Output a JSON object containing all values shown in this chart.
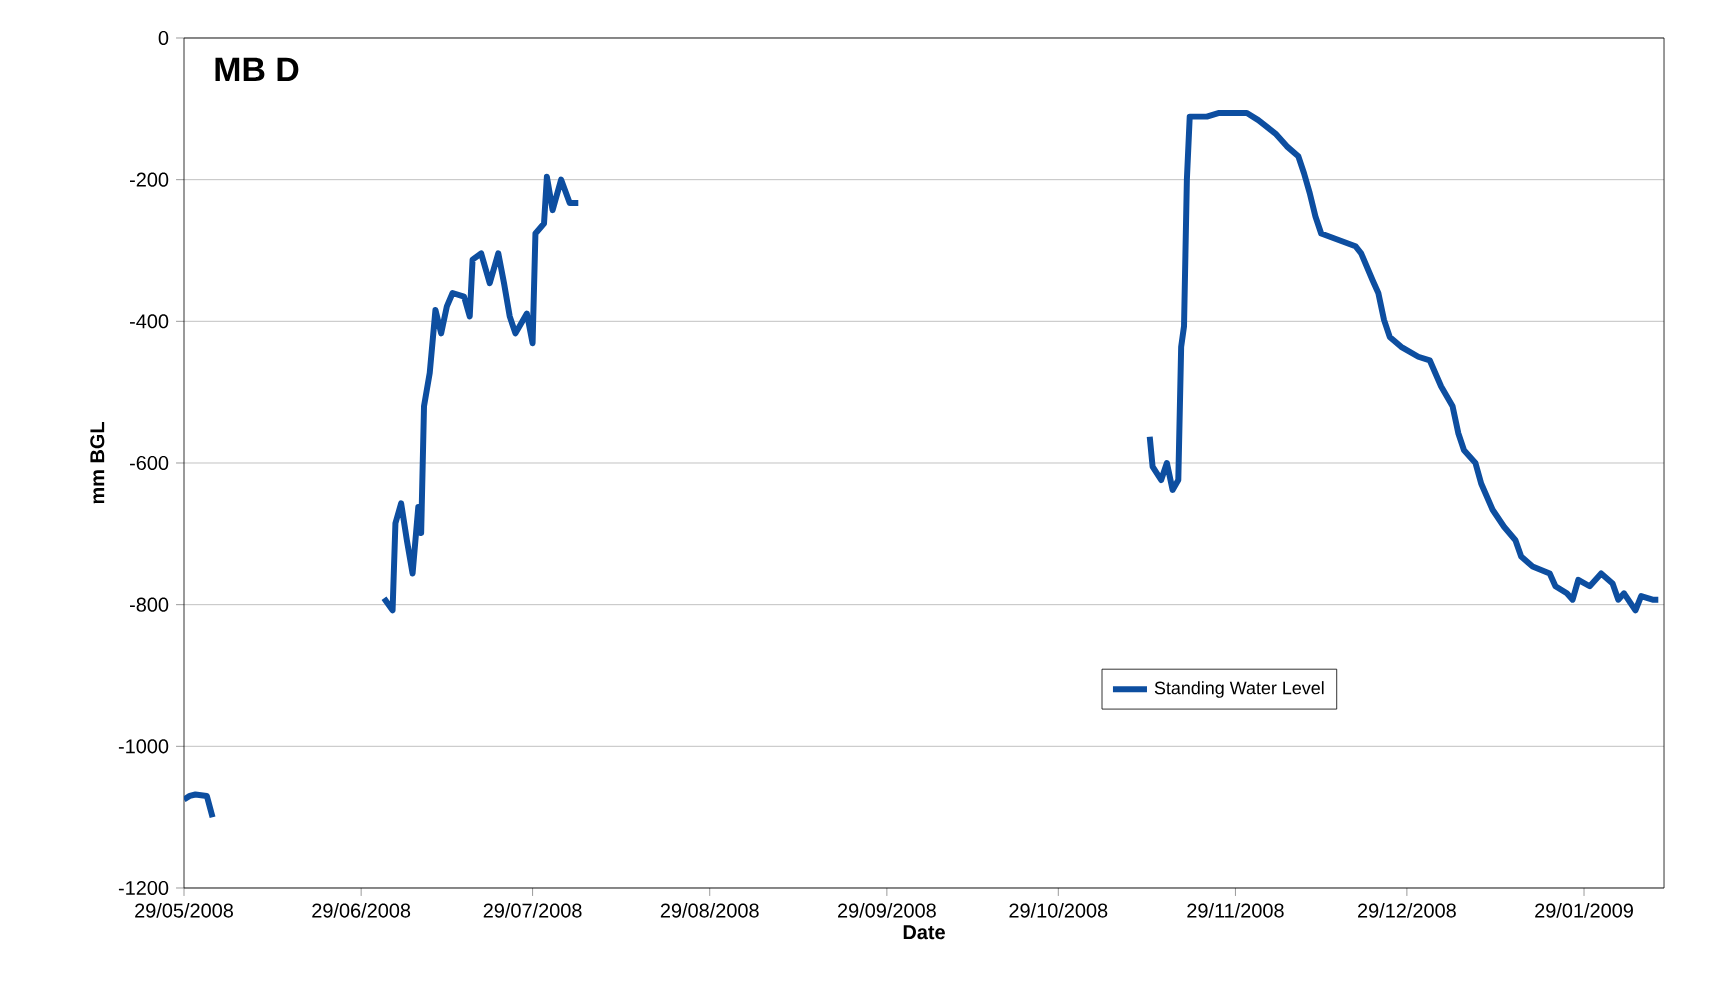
{
  "chart_data": {
    "type": "line",
    "title": "MB D",
    "xlabel": "Date",
    "ylabel": "mm BGL",
    "xlim": [
      "2008-05-29",
      "2009-02-12"
    ],
    "xticks": [
      {
        "value": "2008-05-29",
        "label": "29/05/2008"
      },
      {
        "value": "2008-06-29",
        "label": "29/06/2008"
      },
      {
        "value": "2008-07-29",
        "label": "29/07/2008"
      },
      {
        "value": "2008-08-29",
        "label": "29/08/2008"
      },
      {
        "value": "2008-09-29",
        "label": "29/09/2008"
      },
      {
        "value": "2008-10-29",
        "label": "29/10/2008"
      },
      {
        "value": "2008-11-29",
        "label": "29/11/2008"
      },
      {
        "value": "2008-12-29",
        "label": "29/12/2008"
      },
      {
        "value": "2009-01-29",
        "label": "29/01/2009"
      }
    ],
    "ylim": [
      -1200,
      0
    ],
    "yticks": [
      -1200,
      -1000,
      -800,
      -600,
      -400,
      -200,
      0
    ],
    "grid": "y",
    "legend": "bottom right",
    "marker": "none",
    "line_style": "solid",
    "x": [
      "2008-05-29",
      "2008-05-30",
      "2008-05-31",
      "2008-06-02",
      "2008-06-03",
      "2008-06-15",
      "2008-07-03",
      "2008-07-04T12:00",
      "2008-07-05",
      "2008-07-06",
      "2008-07-07",
      "2008-07-08",
      "2008-07-09",
      "2008-07-09T12:00",
      "2008-07-10",
      "2008-07-11",
      "2008-07-12",
      "2008-07-13",
      "2008-07-14",
      "2008-07-15",
      "2008-07-17",
      "2008-07-18",
      "2008-07-18T12:00",
      "2008-07-20",
      "2008-07-21T12:00",
      "2008-07-23",
      "2008-07-24",
      "2008-07-25",
      "2008-07-26",
      "2008-07-28",
      "2008-07-29",
      "2008-07-29T12:00",
      "2008-07-31",
      "2008-07-31T12:00",
      "2008-08-01T12:00",
      "2008-08-03",
      "2008-08-04T12:00",
      "2008-08-06",
      "2008-10-01",
      "2008-11-14",
      "2008-11-14T12:00",
      "2008-11-16",
      "2008-11-17",
      "2008-11-18",
      "2008-11-19",
      "2008-11-19T12:00",
      "2008-11-20",
      "2008-11-20T12:00",
      "2008-11-21",
      "2008-11-24",
      "2008-11-26",
      "2008-12-01",
      "2008-12-03",
      "2008-12-06",
      "2008-12-08",
      "2008-12-10",
      "2008-12-11",
      "2008-12-12",
      "2008-12-13",
      "2008-12-14",
      "2008-12-17",
      "2008-12-20",
      "2008-12-21",
      "2008-12-23",
      "2008-12-24",
      "2008-12-25",
      "2008-12-26",
      "2008-12-28",
      "2008-12-31",
      "2009-01-02",
      "2009-01-04",
      "2009-01-06",
      "2009-01-07",
      "2009-01-08",
      "2009-01-10",
      "2009-01-11",
      "2009-01-13",
      "2009-01-15",
      "2009-01-17",
      "2009-01-18",
      "2009-01-20",
      "2009-01-23",
      "2009-01-24",
      "2009-01-26",
      "2009-01-27",
      "2009-01-28",
      "2009-01-30",
      "2009-02-01",
      "2009-02-03",
      "2009-02-04",
      "2009-02-05",
      "2009-02-07",
      "2009-02-08",
      "2009-02-10",
      "2009-02-11"
    ],
    "series": [
      {
        "name": "Standing Water Level",
        "color": "#0d4ea0",
        "values": [
          -1075,
          -1070,
          -1068,
          -1070,
          -1100,
          null,
          -791,
          -808,
          -685,
          -657,
          -709,
          -756,
          -662,
          -699,
          -520,
          -473,
          -384,
          -417,
          -379,
          -360,
          -365,
          -393,
          -313,
          -304,
          -346,
          -304,
          -346,
          -393,
          -417,
          -389,
          -431,
          -276,
          -262,
          -196,
          -243,
          -200,
          -233,
          -233,
          null,
          -563,
          -605,
          -624,
          -600,
          -638,
          -624,
          -436,
          -407,
          -200,
          -111,
          -111,
          -106,
          -106,
          -116,
          -135,
          -153,
          -167,
          -191,
          -219,
          -252,
          -276,
          -285,
          -294,
          -304,
          -342,
          -360,
          -398,
          -422,
          -436,
          -450,
          -455,
          -492,
          -520,
          -558,
          -582,
          -600,
          -629,
          -666,
          -690,
          -709,
          -732,
          -746,
          -756,
          -774,
          -784,
          -793,
          -765,
          -774,
          -756,
          -770,
          -793,
          -784,
          -808,
          -788,
          -793,
          -793
        ]
      }
    ]
  }
}
